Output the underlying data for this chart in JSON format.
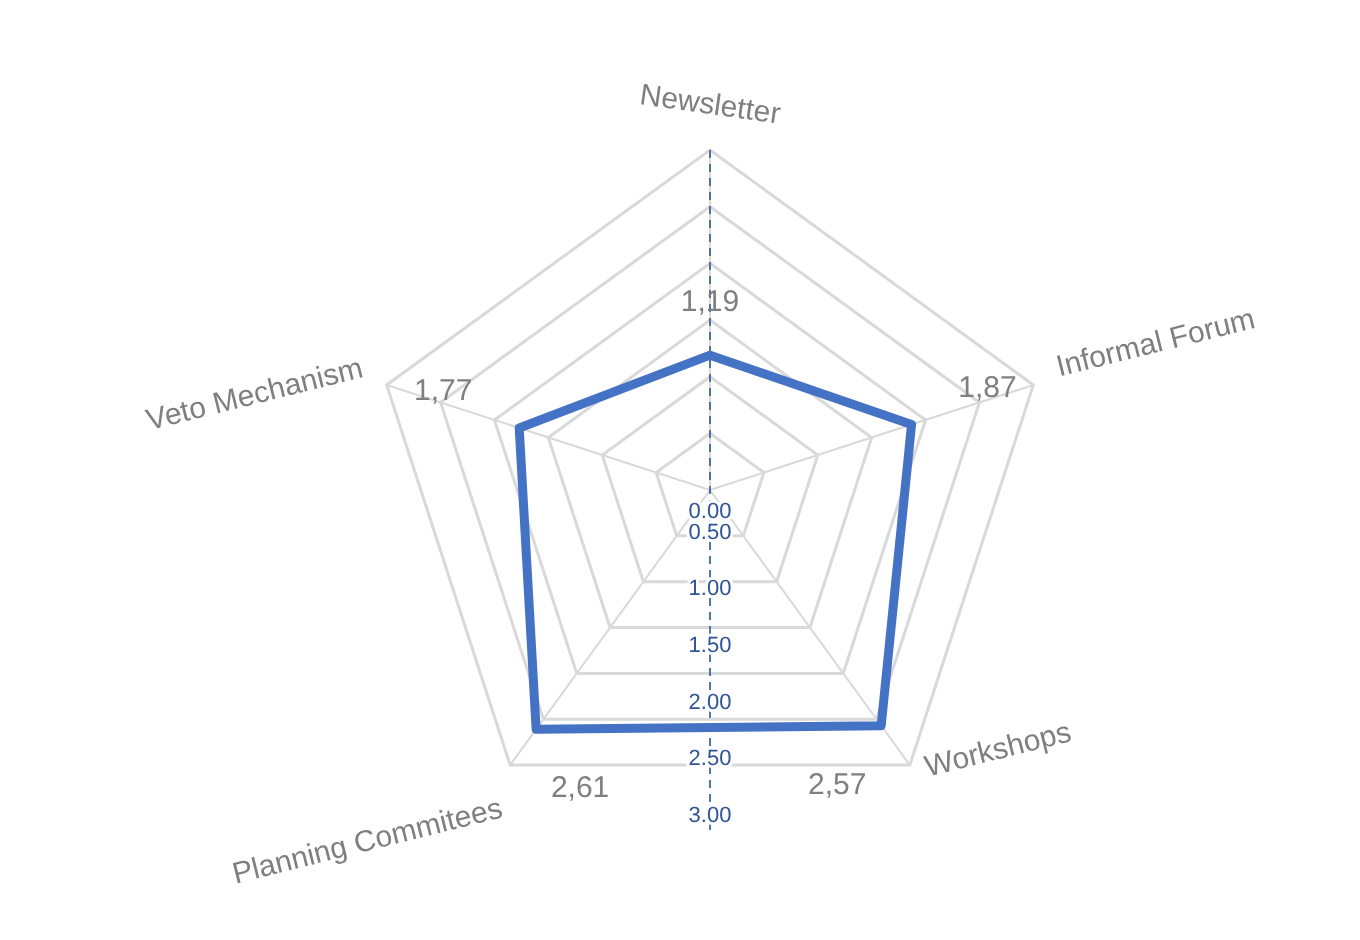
{
  "chart_data": {
    "type": "radar",
    "categories": [
      "Newsletter",
      "Informal Forum",
      "Workshops",
      "Planning Commitees",
      "Veto Mechanism"
    ],
    "series": [
      {
        "color": "#4472c4",
        "values": [
          1.19,
          1.87,
          2.57,
          2.61,
          1.77
        ],
        "value_labels": [
          "1,19",
          "1,87",
          "2,57",
          "2,61",
          "1,77"
        ]
      }
    ],
    "ylim": [
      0,
      3
    ],
    "yticks": [
      {
        "value": 0,
        "label": "0.00"
      },
      {
        "value": 0.5,
        "label": "0.50"
      },
      {
        "value": 1,
        "label": "1.00"
      },
      {
        "value": 1.5,
        "label": "1.50"
      },
      {
        "value": 2,
        "label": "2.00"
      },
      {
        "value": 2.5,
        "label": "2.50"
      },
      {
        "value": 3,
        "label": "3.00"
      }
    ],
    "grid": true
  }
}
